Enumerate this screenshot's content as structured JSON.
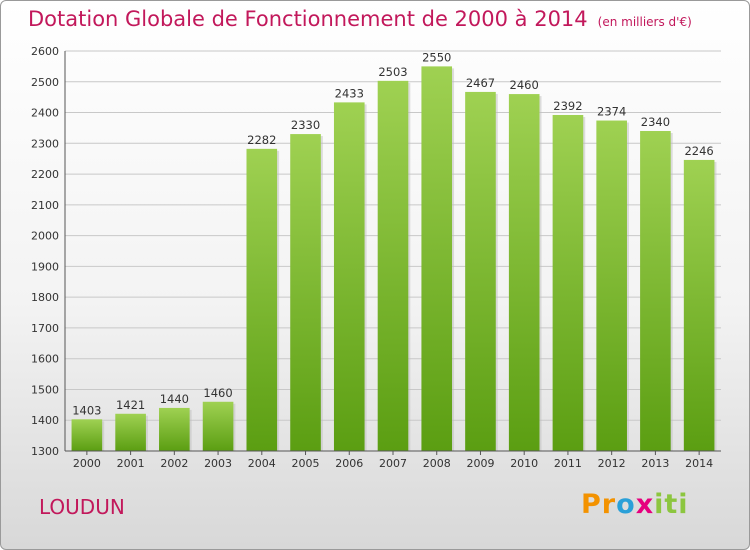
{
  "title": "Dotation Globale de Fonctionnement de 2000 à 2014",
  "unit": "(en milliers d'€)",
  "city": "LOUDUN",
  "brand": {
    "letters": [
      "P",
      "r",
      "o",
      "x",
      "i",
      "t",
      "i"
    ],
    "colors": [
      "#f39200",
      "#f39200",
      "#2aa0d8",
      "#e6007e",
      "#8cc63f",
      "#8cc63f",
      "#8cc63f"
    ]
  },
  "chart_data": {
    "type": "bar",
    "categories": [
      "2000",
      "2001",
      "2002",
      "2003",
      "2004",
      "2005",
      "2006",
      "2007",
      "2008",
      "2009",
      "2010",
      "2011",
      "2012",
      "2013",
      "2014"
    ],
    "values": [
      1403,
      1421,
      1440,
      1460,
      2282,
      2330,
      2433,
      2503,
      2550,
      2467,
      2460,
      2392,
      2374,
      2340,
      2246
    ],
    "ylim": [
      1300,
      2600
    ],
    "yticks": [
      1300,
      1400,
      1500,
      1600,
      1700,
      1800,
      1900,
      2000,
      2100,
      2200,
      2300,
      2400,
      2500,
      2600
    ],
    "grid": true,
    "colors": {
      "bar_top": "#9fd152",
      "bar_bottom": "#5b9e12",
      "grid": "#c8c8c8"
    }
  }
}
